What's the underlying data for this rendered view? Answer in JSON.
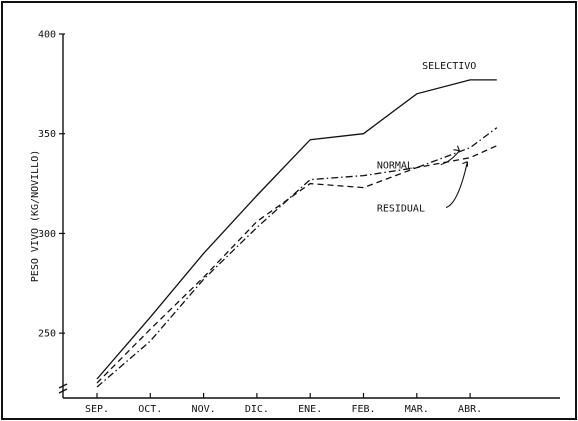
{
  "chart_data": {
    "type": "line",
    "title": "",
    "xlabel": "",
    "ylabel": "PESO VIVO (KG/NOVILLO)",
    "categories": [
      "SEP.",
      "OCT.",
      "NOV.",
      "DIC.",
      "ENE.",
      "FEB.",
      "MAR.",
      "ABR."
    ],
    "x": [
      0,
      1,
      2,
      3,
      4,
      5,
      6,
      7,
      7.5
    ],
    "yticks": [
      250,
      300,
      350,
      400
    ],
    "ylim": [
      220,
      400
    ],
    "grid": false,
    "series": [
      {
        "name": "SELECTIVO",
        "style": "solid",
        "values": [
          227,
          258,
          290,
          319,
          347,
          350,
          370,
          377,
          377
        ]
      },
      {
        "name": "NORMAL",
        "style": "dash-dot",
        "values": [
          223,
          246,
          277,
          303,
          327,
          329,
          333,
          343,
          353
        ]
      },
      {
        "name": "RESIDUAL",
        "style": "dashed",
        "values": [
          225,
          252,
          278,
          306,
          325,
          323,
          333,
          338,
          344
        ]
      }
    ]
  }
}
